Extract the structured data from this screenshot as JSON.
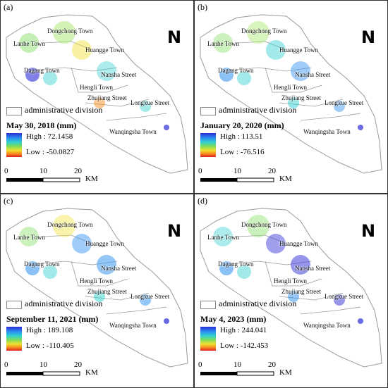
{
  "panels": [
    {
      "label": "(a)",
      "date": "May 30, 2018 (mm)",
      "high": "High : 72.1458",
      "low": "Low : -50.0827"
    },
    {
      "label": "(b)",
      "date": "January 20, 2020 (mm)",
      "high": "High : 113.51",
      "low": "Low : -76.516"
    },
    {
      "label": "(c)",
      "date": "September 11, 2021 (mm)",
      "high": "High : 189.108",
      "low": "Low : -110.405"
    },
    {
      "label": "(d)",
      "date": "May 4, 2023 (mm)",
      "high": "High : 244.041",
      "low": "Low : -142.453"
    }
  ],
  "towns": {
    "dongchong": "Dongchong Town",
    "lanhe": "Lanhe Town",
    "huangge": "Huangge Town",
    "dagang": "Dagang Town",
    "nansha": "Nansha Street",
    "hengli": "Hengli Town",
    "zhujiang": "Zhujiang Street",
    "longxue": "Longxue Street",
    "wanqingsha": "Wanqingsha Town"
  },
  "legend": {
    "division": "administrative division"
  },
  "scalebar": {
    "t0": "0",
    "t1": "10",
    "t2": "20",
    "unit": "KM"
  },
  "north": {
    "symbol": "N"
  },
  "colors": {
    "high": "#2b2bd6",
    "mid": "#30d0d0",
    "low": "#e02020",
    "boundary": "#9a9a9a"
  }
}
